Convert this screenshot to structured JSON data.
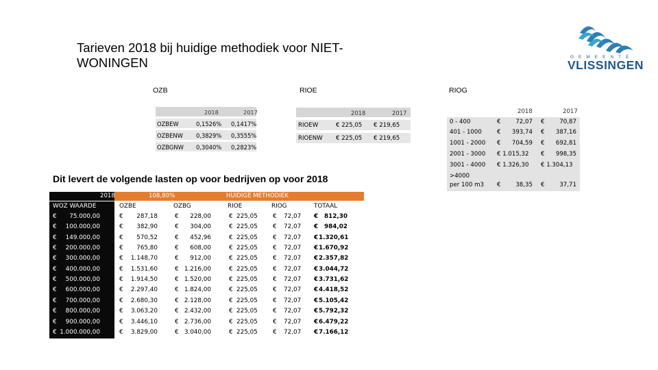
{
  "title": "Tarieven 2018 bij huidige methodiek voor NIET-WONINGEN",
  "logo": {
    "top": "GEMEENTE",
    "name": "VLISSINGEN"
  },
  "sections": {
    "ozb": "OZB",
    "rioe": "RIOE",
    "riog": "RIOG"
  },
  "ozb_table": {
    "years": [
      "2018",
      "2017"
    ],
    "rows": [
      {
        "label": "OZBEW",
        "v2018": "0,1526%",
        "v2017": "0,1417%"
      },
      {
        "label": "OZBENW",
        "v2018": "0,3829%",
        "v2017": "0,3555%"
      },
      {
        "label": "OZBGNW",
        "v2018": "0,3040%",
        "v2017": "0,2823%"
      }
    ]
  },
  "rioe_table": {
    "years": [
      "2018",
      "2017"
    ],
    "rows": [
      {
        "label": "RIOEW",
        "v2018": "€ 225,05",
        "v2017": "€ 219,65"
      },
      {
        "label": "RIOENW",
        "v2018": "€ 225,05",
        "v2017": "€ 219,65"
      }
    ]
  },
  "riog_table": {
    "years": [
      "2018",
      "2017"
    ],
    "rows": [
      {
        "label": "0 - 400",
        "v2018": "€        72,07",
        "v2017": "€        70,87"
      },
      {
        "label": "401 - 1000",
        "v2018": "€      393,74",
        "v2017": "€      387,16"
      },
      {
        "label": "1001 - 2000",
        "v2018": "€      704,59",
        "v2017": "€      692,81"
      },
      {
        "label": "2001 - 3000",
        "v2018": "€ 1.015,32",
        "v2017": "€      998,35"
      },
      {
        "label": "3001 - 4000",
        "v2018": "€ 1.326,30",
        "v2017": "€ 1.304,13"
      },
      {
        "label": ">4000",
        "v2018": "",
        "v2017": ""
      },
      {
        "label": "per 100 m3",
        "v2018": "€        38,35",
        "v2017": "€        37,71"
      }
    ]
  },
  "subtitle": "Dit levert de volgende lasten op voor bedrijven op voor 2018",
  "main_table": {
    "year": "2018",
    "pct": "108,80%",
    "method": "HUIDIGE METHODIEK",
    "headers": {
      "woz": "WOZ WAARDE",
      "ozbe": "OZBE",
      "ozbg": "OZBG",
      "rioe": "RIOE",
      "riog": "RIOG",
      "totaal": "TOTAAL"
    },
    "rows": [
      {
        "woz": "75.000,00",
        "ozbe": "287,18",
        "ozbg": "228,00",
        "rioe": "225,05",
        "riog": "72,07",
        "totaal": "812,30"
      },
      {
        "woz": "100.000,00",
        "ozbe": "382,90",
        "ozbg": "304,00",
        "rioe": "225,05",
        "riog": "72,07",
        "totaal": "984,02"
      },
      {
        "woz": "149.000,00",
        "ozbe": "570,52",
        "ozbg": "452,96",
        "rioe": "225,05",
        "riog": "72,07",
        "totaal": "1.320,61"
      },
      {
        "woz": "200.000,00",
        "ozbe": "765,80",
        "ozbg": "608,00",
        "rioe": "225,05",
        "riog": "72,07",
        "totaal": "1.670,92"
      },
      {
        "woz": "300.000,00",
        "ozbe": "1.148,70",
        "ozbg": "912,00",
        "rioe": "225,05",
        "riog": "72,07",
        "totaal": "2.357,82"
      },
      {
        "woz": "400.000,00",
        "ozbe": "1.531,60",
        "ozbg": "1.216,00",
        "rioe": "225,05",
        "riog": "72,07",
        "totaal": "3.044,72"
      },
      {
        "woz": "500.000,00",
        "ozbe": "1.914,50",
        "ozbg": "1.520,00",
        "rioe": "225,05",
        "riog": "72,07",
        "totaal": "3.731,62"
      },
      {
        "woz": "600.000,00",
        "ozbe": "2.297,40",
        "ozbg": "1.824,00",
        "rioe": "225,05",
        "riog": "72,07",
        "totaal": "4.418,52"
      },
      {
        "woz": "700.000,00",
        "ozbe": "2.680,30",
        "ozbg": "2.128,00",
        "rioe": "225,05",
        "riog": "72,07",
        "totaal": "5.105,42"
      },
      {
        "woz": "800.000,00",
        "ozbe": "3.063,20",
        "ozbg": "2.432,00",
        "rioe": "225,05",
        "riog": "72,07",
        "totaal": "5.792,32"
      },
      {
        "woz": "900.000,00",
        "ozbe": "3.446,10",
        "ozbg": "2.736,00",
        "rioe": "225,05",
        "riog": "72,07",
        "totaal": "6.479,22"
      },
      {
        "woz": "1.000.000,00",
        "ozbe": "3.829,00",
        "ozbg": "3.040,00",
        "rioe": "225,05",
        "riog": "72,07",
        "totaal": "7.166,12"
      }
    ]
  }
}
